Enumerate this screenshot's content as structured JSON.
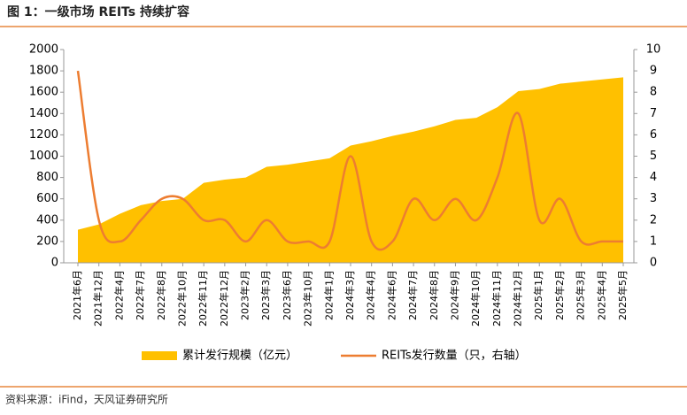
{
  "chart_data": {
    "type": "area-line",
    "title": "图 1：一级市场 REITs 持续扩容",
    "source": "资料来源：iFind，天风证券研究所",
    "categories": [
      "2021年6月",
      "2021年12月",
      "2022年4月",
      "2022年7月",
      "2022年8月",
      "2022年10月",
      "2022年11月",
      "2022年12月",
      "2023年2月",
      "2023年3月",
      "2023年6月",
      "2023年10月",
      "2024年1月",
      "2024年3月",
      "2024年4月",
      "2024年6月",
      "2024年7月",
      "2024年8月",
      "2024年9月",
      "2024年10月",
      "2024年11月",
      "2024年12月",
      "2025年1月",
      "2025年2月",
      "2025年3月",
      "2025年4月",
      "2025年5月"
    ],
    "series": [
      {
        "name": "累计发行规模（亿元）",
        "color": "#FFC000",
        "kind": "area",
        "values": [
          310,
          360,
          460,
          540,
          580,
          600,
          750,
          780,
          800,
          900,
          920,
          950,
          980,
          1100,
          1140,
          1190,
          1230,
          1280,
          1340,
          1360,
          1460,
          1610,
          1630,
          1680,
          1700,
          1720,
          1740
        ]
      },
      {
        "name": "REITs发行数量（只，右轴）",
        "color": "#ED7D31",
        "kind": "line",
        "axis": "y2",
        "values": [
          9,
          2,
          1,
          2,
          3,
          3,
          2,
          2,
          1,
          2,
          1,
          1,
          1,
          5,
          1,
          1,
          3,
          2,
          3,
          2,
          4,
          7,
          2,
          3,
          1,
          1,
          1
        ]
      }
    ],
    "ylim": [
      0,
      2000
    ],
    "yticks": [
      0,
      200,
      400,
      600,
      800,
      1000,
      1200,
      1400,
      1600,
      1800,
      2000
    ],
    "y2lim": [
      0,
      10
    ],
    "y2ticks": [
      0,
      1,
      2,
      3,
      4,
      5,
      6,
      7,
      8,
      9,
      10
    ]
  }
}
